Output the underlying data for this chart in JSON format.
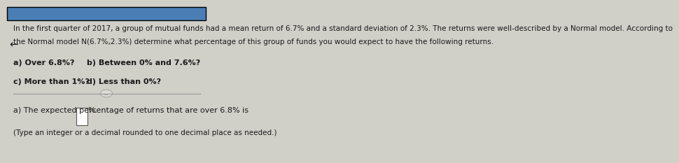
{
  "bg_color": "#d0cfc8",
  "panel_color": "#e8e6df",
  "top_bar_color": "#4a7eb5",
  "header_text": "In the first quarter of 2017, a group of mutual funds had a mean return of 6.7% and a standard deviation of 2.3%. The returns were well-described by a Normal model. According to\nthe Normal model N(6.7%,2.3%) determine what percentage of this group of funds you would expect to have the following returns.",
  "q_a": "a) Over 6.8%?",
  "q_b": "b) Between 0% and 7.6%?",
  "q_c": "c) More than 1%?",
  "q_d": "d) Less than 0%?",
  "answer_line1": "a) The expected percentage of returns that are over 6.8% is",
  "answer_line1_suffix": "%.",
  "answer_line2": "(Type an integer or a decimal rounded to one decimal place as needed.)",
  "arrow_symbol": "←",
  "header_fontsize": 7.5,
  "question_fontsize": 8.0,
  "answer_fontsize": 8.0,
  "divider_color": "#999999",
  "text_color": "#1a1a1a",
  "input_box_color": "#ffffff",
  "input_box_border": "#555555"
}
